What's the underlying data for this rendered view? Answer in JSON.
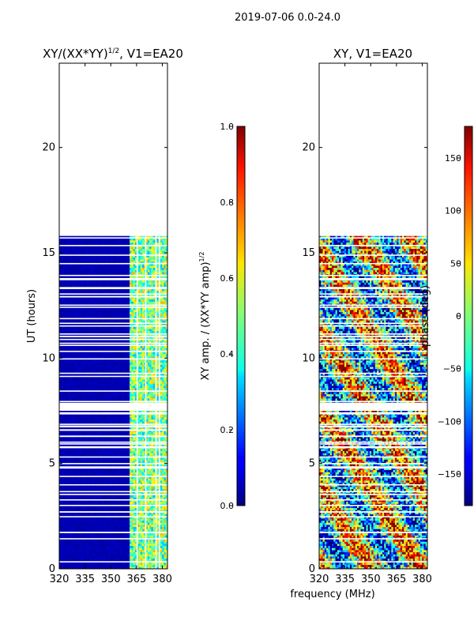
{
  "suptitle": "2019-07-06 0.0-24.0",
  "shared_xlabel": "frequency (MHz)",
  "chart_data": [
    {
      "type": "heatmap",
      "title": "XY/(XX*YY)",
      "title_sup": "1/2",
      "title_suffix": ", V1=EA20",
      "ylabel": "UT (hours)",
      "xlim": [
        320,
        383
      ],
      "ylim": [
        0,
        24
      ],
      "xticks": [
        320,
        335,
        350,
        365,
        380
      ],
      "yticks": [
        0,
        5,
        10,
        15,
        20
      ],
      "data_extent_hours": [
        0,
        15.8
      ],
      "gap_hours": [
        7.5,
        7.9
      ],
      "colormap": "jet",
      "colorbar": {
        "label": "XY amp. / (XX*YY amp)",
        "label_sup": "1/2",
        "range": [
          0.0,
          1.0
        ],
        "ticks": [
          "0.0",
          "0.2",
          "0.4",
          "0.6",
          "0.8",
          "1.0"
        ]
      }
    },
    {
      "type": "heatmap",
      "title": "XY, V1=EA20",
      "ylabel": "",
      "xlim": [
        320,
        383
      ],
      "ylim": [
        0,
        24
      ],
      "xticks": [
        320,
        335,
        350,
        365,
        380
      ],
      "yticks": [
        0,
        5,
        10,
        15,
        20
      ],
      "data_extent_hours": [
        0,
        15.8
      ],
      "gap_hours": [
        7.5,
        7.9
      ],
      "colormap": "jet",
      "colorbar": {
        "label": "phase (deg)",
        "range": [
          -180,
          180
        ],
        "ticks": [
          "−150",
          "−100",
          "−50",
          "0",
          "50",
          "100",
          "150"
        ]
      }
    }
  ]
}
